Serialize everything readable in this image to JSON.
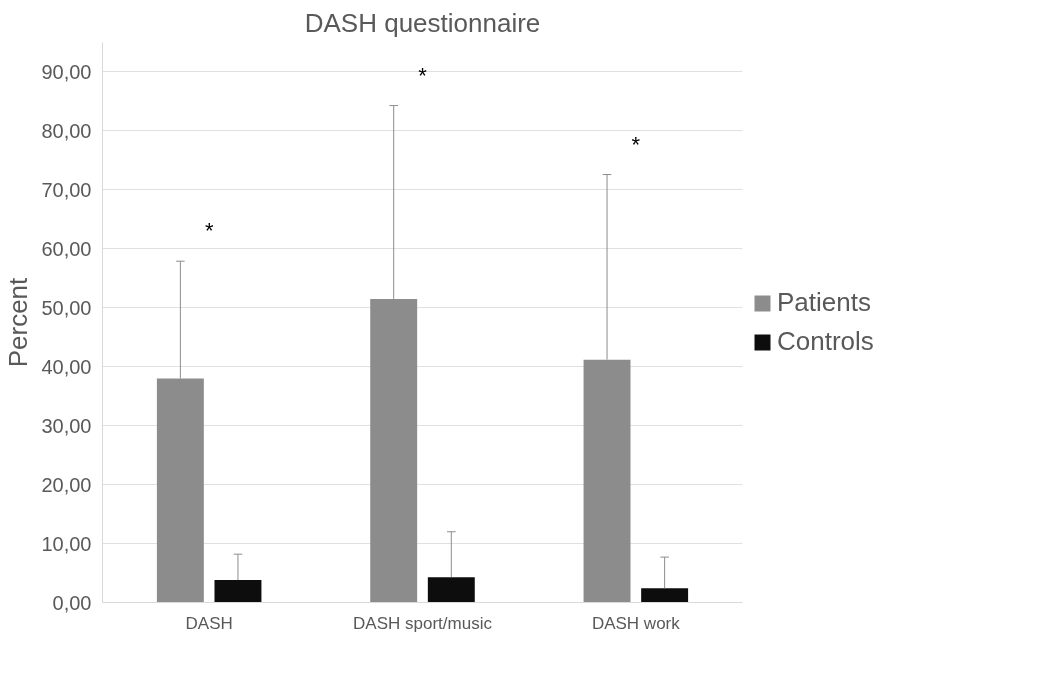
{
  "chart_data": {
    "type": "bar",
    "title": "DASH questionnaire",
    "ylabel": "Percent",
    "categories": [
      "DASH",
      "DASH sport/music",
      "DASH work"
    ],
    "series": [
      {
        "name": "Patients",
        "color": "#8c8c8c",
        "values": [
          38.0,
          51.5,
          41.2
        ],
        "errors": [
          [
            38.0,
            57.9
          ],
          [
            51.5,
            84.3
          ],
          [
            41.2,
            72.6
          ]
        ]
      },
      {
        "name": "Controls",
        "color": "#0d0d0d",
        "values": [
          3.8,
          4.3,
          2.4
        ],
        "errors": [
          [
            3.8,
            8.2
          ],
          [
            4.3,
            12.0
          ],
          [
            2.4,
            7.7
          ]
        ]
      }
    ],
    "ylim": [
      0,
      95
    ],
    "yticks": [
      {
        "value": 0,
        "label": "0,00"
      },
      {
        "value": 10,
        "label": "10,00"
      },
      {
        "value": 20,
        "label": "20,00"
      },
      {
        "value": 30,
        "label": "30,00"
      },
      {
        "value": 40,
        "label": "40,00"
      },
      {
        "value": 50,
        "label": "50,00"
      },
      {
        "value": 60,
        "label": "60,00"
      },
      {
        "value": 70,
        "label": "70,00"
      },
      {
        "value": 80,
        "label": "80,00"
      },
      {
        "value": 90,
        "label": "90,00"
      }
    ],
    "grid": "y",
    "legend": "right",
    "annotations": [
      "*",
      "*",
      "*"
    ]
  }
}
